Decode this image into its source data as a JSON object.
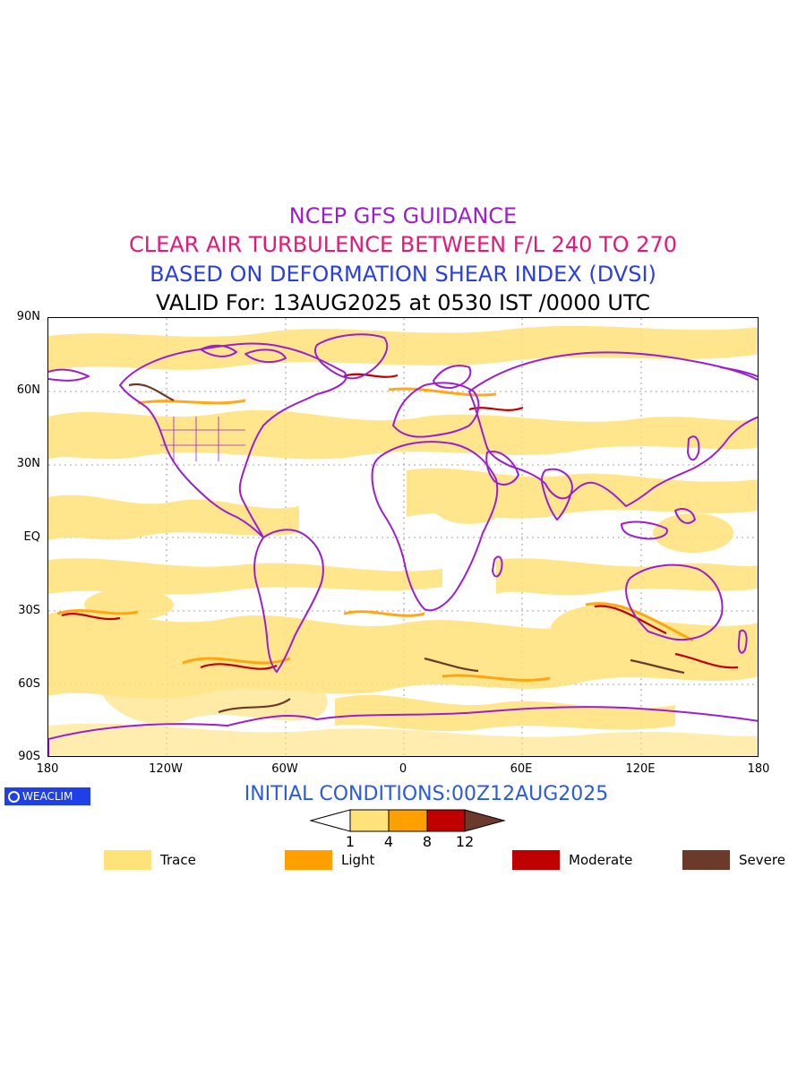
{
  "titles": {
    "line1": "NCEP GFS GUIDANCE",
    "line2": "CLEAR AIR TURBULENCE BETWEEN F/L 240 TO 270",
    "line3": "BASED ON DEFORMATION SHEAR INDEX (DVSI)",
    "line4": "VALID For: 13AUG2025 at 0530 IST /0000 UTC"
  },
  "axes": {
    "lat_labels": [
      "90N",
      "60N",
      "30N",
      "EQ",
      "30S",
      "60S",
      "90S"
    ],
    "lon_labels": [
      "180",
      "120W",
      "60W",
      "0",
      "60E",
      "120E",
      "180"
    ]
  },
  "logo": {
    "text": "WEACLIM"
  },
  "initial_conditions": "INITIAL CONDITIONS:00Z12AUG2025",
  "colorbar": {
    "ticks": [
      "1",
      "4",
      "8",
      "12"
    ],
    "colors": [
      "#ffffff",
      "#ffe27a",
      "#ff9f00",
      "#c00000",
      "#6b3a2a"
    ]
  },
  "legend": [
    {
      "label": "Trace",
      "color": "#ffe27a"
    },
    {
      "label": "Light",
      "color": "#ff9f00"
    },
    {
      "label": "Moderate",
      "color": "#c00000"
    },
    {
      "label": "Severe",
      "color": "#6b3a2a"
    }
  ],
  "colors": {
    "coastline": "#9b1fd0",
    "grid": "#888888"
  }
}
